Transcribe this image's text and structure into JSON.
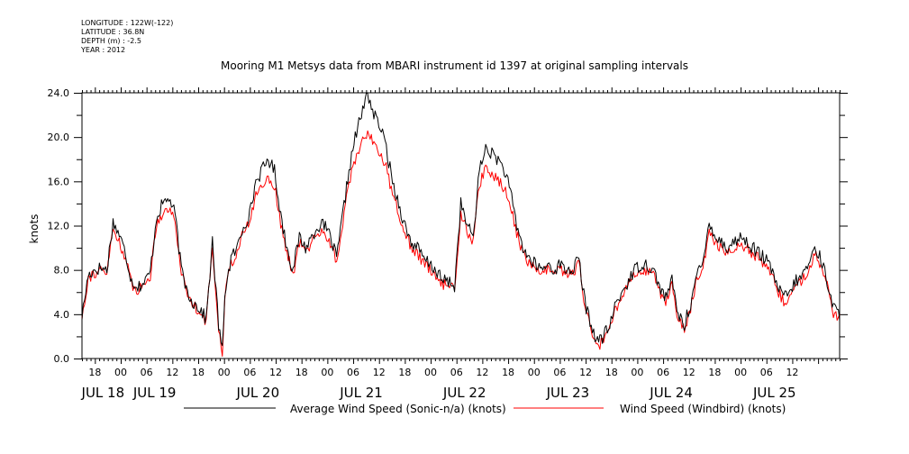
{
  "metadata": {
    "longitude": "LONGITUDE : 122W(-122)",
    "latitude": "LATITUDE : 36.8N",
    "depth": "DEPTH (m) : -2.5",
    "year": "YEAR : 2012"
  },
  "chart_data": {
    "type": "line",
    "title": "Mooring M1 Metsys data from MBARI instrument id 1397 at original sampling intervals",
    "xlabel": "",
    "ylabel": "knots",
    "ylim": [
      0,
      24.0
    ],
    "xlim_hours": [
      -9,
      167
    ],
    "y_ticks": [
      "0.0",
      "4.0",
      "8.0",
      "12.0",
      "16.0",
      "20.0",
      "24.0"
    ],
    "x_hour_ticks": [
      {
        "h": -6,
        "label": "18"
      },
      {
        "h": 0,
        "label": "00"
      },
      {
        "h": 6,
        "label": "06"
      },
      {
        "h": 12,
        "label": "12"
      },
      {
        "h": 18,
        "label": "18"
      },
      {
        "h": 24,
        "label": "00"
      },
      {
        "h": 30,
        "label": "06"
      },
      {
        "h": 36,
        "label": "12"
      },
      {
        "h": 42,
        "label": "18"
      },
      {
        "h": 48,
        "label": "00"
      },
      {
        "h": 54,
        "label": "06"
      },
      {
        "h": 60,
        "label": "12"
      },
      {
        "h": 66,
        "label": "18"
      },
      {
        "h": 72,
        "label": "00"
      },
      {
        "h": 78,
        "label": "06"
      },
      {
        "h": 84,
        "label": "12"
      },
      {
        "h": 90,
        "label": "18"
      },
      {
        "h": 96,
        "label": "00"
      },
      {
        "h": 102,
        "label": "06"
      },
      {
        "h": 108,
        "label": "12"
      },
      {
        "h": 114,
        "label": "18"
      },
      {
        "h": 120,
        "label": "00"
      },
      {
        "h": 126,
        "label": "06"
      },
      {
        "h": 132,
        "label": "12"
      },
      {
        "h": 138,
        "label": "18"
      },
      {
        "h": 144,
        "label": "00"
      },
      {
        "h": 150,
        "label": "06"
      },
      {
        "h": 156,
        "label": "12"
      },
      {
        "h": 162,
        "label": "18"
      },
      {
        "h": 168,
        "label": "00"
      },
      {
        "h": 174,
        "label": "06"
      },
      {
        "h": 180,
        "label": "12"
      },
      {
        "h": 186,
        "label": "18"
      },
      {
        "h": 192,
        "label": "00"
      },
      {
        "h": 198,
        "label": "06"
      },
      {
        "h": 204,
        "label": "12"
      }
    ],
    "x_day_labels": [
      {
        "h": -6,
        "label": "JUL 18"
      },
      {
        "h": 6,
        "label": "JUL 19"
      },
      {
        "h": 30,
        "label": "JUL 20"
      },
      {
        "h": 54,
        "label": "JUL 21"
      },
      {
        "h": 78,
        "label": "JUL 22"
      },
      {
        "h": 102,
        "label": "JUL 23"
      },
      {
        "h": 126,
        "label": "JUL 24"
      },
      {
        "h": 150,
        "label": "JUL 25"
      }
    ],
    "x_hour_ticks_visible_range": [
      -6,
      156
    ],
    "series": [
      {
        "name": "Average Wind Speed (Sonic-n/a) (knots)",
        "color": "#000000",
        "noise": 0.6,
        "points": [
          [
            -9.0,
            3.8
          ],
          [
            -8.0,
            7.5
          ],
          [
            -7.0,
            8.0
          ],
          [
            -6.0,
            8.2
          ],
          [
            -5.0,
            8.0
          ],
          [
            -4.0,
            12.3
          ],
          [
            -3.0,
            11.2
          ],
          [
            -2.0,
            9.5
          ],
          [
            -1.0,
            7.0
          ],
          [
            0.0,
            6.5
          ],
          [
            1.0,
            6.8
          ],
          [
            2.0,
            7.8
          ],
          [
            3.0,
            12.8
          ],
          [
            4.0,
            14.0
          ],
          [
            5.0,
            14.5
          ],
          [
            6.0,
            13.0
          ],
          [
            7.0,
            8.0
          ],
          [
            8.0,
            6.0
          ],
          [
            9.0,
            5.0
          ],
          [
            10.0,
            4.5
          ],
          [
            11.0,
            3.5
          ],
          [
            12.0,
            10.5
          ],
          [
            13.0,
            3.0
          ],
          [
            13.6,
            0.6
          ],
          [
            14.0,
            6.0
          ],
          [
            15.0,
            9.0
          ],
          [
            16.0,
            10.0
          ],
          [
            17.0,
            12.0
          ],
          [
            18.0,
            13.0
          ],
          [
            19.0,
            16.0
          ],
          [
            20.0,
            17.0
          ],
          [
            21.0,
            18.0
          ],
          [
            22.0,
            17.0
          ],
          [
            23.0,
            13.0
          ],
          [
            24.0,
            10.0
          ],
          [
            25.0,
            8.0
          ],
          [
            26.0,
            11.0
          ],
          [
            27.0,
            10.0
          ],
          [
            28.0,
            11.0
          ],
          [
            29.0,
            12.0
          ],
          [
            30.0,
            12.0
          ],
          [
            31.0,
            11.0
          ],
          [
            32.0,
            9.0
          ],
          [
            33.0,
            13.0
          ],
          [
            34.0,
            17.0
          ],
          [
            35.0,
            20.0
          ],
          [
            36.0,
            22.0
          ],
          [
            37.0,
            24.0
          ],
          [
            38.0,
            22.0
          ],
          [
            39.0,
            21.0
          ],
          [
            40.0,
            19.0
          ],
          [
            41.0,
            16.0
          ],
          [
            42.0,
            14.0
          ],
          [
            43.0,
            12.0
          ],
          [
            44.0,
            10.5
          ],
          [
            45.0,
            10.0
          ],
          [
            46.0,
            9.0
          ],
          [
            47.0,
            8.5
          ],
          [
            48.0,
            8.0
          ],
          [
            49.0,
            7.0
          ],
          [
            50.0,
            7.0
          ],
          [
            51.0,
            6.5
          ],
          [
            52.0,
            14.0
          ],
          [
            53.0,
            12.0
          ],
          [
            54.0,
            11.0
          ],
          [
            55.0,
            17.0
          ],
          [
            56.0,
            19.0
          ],
          [
            57.0,
            18.5
          ],
          [
            58.0,
            18.0
          ],
          [
            59.0,
            17.0
          ],
          [
            60.0,
            15.0
          ],
          [
            61.0,
            12.0
          ],
          [
            62.0,
            10.0
          ],
          [
            63.0,
            9.0
          ],
          [
            64.0,
            8.5
          ],
          [
            65.0,
            8.0
          ],
          [
            66.0,
            8.5
          ],
          [
            67.0,
            8.0
          ],
          [
            68.0,
            8.5
          ],
          [
            69.0,
            8.0
          ],
          [
            70.0,
            8.0
          ],
          [
            71.0,
            9.0
          ],
          [
            72.0,
            5.0
          ],
          [
            73.0,
            3.0
          ],
          [
            74.0,
            1.5
          ],
          [
            75.0,
            2.0
          ],
          [
            76.0,
            3.0
          ],
          [
            77.0,
            5.0
          ],
          [
            78.0,
            6.0
          ],
          [
            79.0,
            7.0
          ],
          [
            80.0,
            8.0
          ],
          [
            81.0,
            8.5
          ],
          [
            82.0,
            8.5
          ],
          [
            83.0,
            8.0
          ],
          [
            84.0,
            6.5
          ],
          [
            85.0,
            5.5
          ],
          [
            86.0,
            7.0
          ],
          [
            87.0,
            4.0
          ],
          [
            88.0,
            3.0
          ],
          [
            89.0,
            5.0
          ],
          [
            90.0,
            7.5
          ],
          [
            91.0,
            8.5
          ],
          [
            92.0,
            12.5
          ],
          [
            93.0,
            11.0
          ],
          [
            94.0,
            10.5
          ],
          [
            95.0,
            10.0
          ],
          [
            96.0,
            10.5
          ],
          [
            97.0,
            11.0
          ],
          [
            98.0,
            10.5
          ],
          [
            99.0,
            10.0
          ],
          [
            100.0,
            9.5
          ],
          [
            101.0,
            9.0
          ],
          [
            102.0,
            8.0
          ],
          [
            103.0,
            6.5
          ],
          [
            104.0,
            5.5
          ],
          [
            105.0,
            6.0
          ],
          [
            106.0,
            7.0
          ],
          [
            107.0,
            7.5
          ],
          [
            108.0,
            8.5
          ],
          [
            109.0,
            10.0
          ],
          [
            110.0,
            9.0
          ],
          [
            111.0,
            7.0
          ],
          [
            112.0,
            4.5
          ],
          [
            113.0,
            4.0
          ]
        ]
      },
      {
        "name": "Wind Speed (Windbird) (knots)",
        "color": "#ff0000",
        "noise": 0.5,
        "points": [
          [
            -9.0,
            3.8
          ],
          [
            -8.0,
            7.3
          ],
          [
            -7.0,
            7.7
          ],
          [
            -6.0,
            7.9
          ],
          [
            -5.0,
            7.7
          ],
          [
            -4.0,
            11.7
          ],
          [
            -3.0,
            10.6
          ],
          [
            -2.0,
            9.0
          ],
          [
            -1.0,
            6.7
          ],
          [
            0.0,
            6.2
          ],
          [
            1.0,
            6.6
          ],
          [
            2.0,
            7.5
          ],
          [
            3.0,
            12.2
          ],
          [
            4.0,
            13.2
          ],
          [
            5.0,
            13.6
          ],
          [
            6.0,
            12.4
          ],
          [
            7.0,
            7.8
          ],
          [
            8.0,
            5.8
          ],
          [
            9.0,
            4.8
          ],
          [
            10.0,
            4.3
          ],
          [
            11.0,
            3.3
          ],
          [
            12.0,
            10.0
          ],
          [
            13.0,
            2.8
          ],
          [
            13.6,
            0.4
          ],
          [
            14.0,
            5.8
          ],
          [
            15.0,
            8.6
          ],
          [
            16.0,
            9.6
          ],
          [
            17.0,
            11.4
          ],
          [
            18.0,
            12.3
          ],
          [
            19.0,
            14.8
          ],
          [
            20.0,
            15.6
          ],
          [
            21.0,
            16.4
          ],
          [
            22.0,
            15.6
          ],
          [
            23.0,
            12.2
          ],
          [
            24.0,
            9.5
          ],
          [
            25.0,
            7.6
          ],
          [
            26.0,
            10.5
          ],
          [
            27.0,
            9.6
          ],
          [
            28.0,
            10.5
          ],
          [
            29.0,
            11.4
          ],
          [
            30.0,
            11.4
          ],
          [
            31.0,
            10.5
          ],
          [
            32.0,
            8.6
          ],
          [
            33.0,
            12.4
          ],
          [
            34.0,
            15.8
          ],
          [
            35.0,
            18.0
          ],
          [
            36.0,
            19.5
          ],
          [
            37.0,
            20.5
          ],
          [
            38.0,
            19.5
          ],
          [
            39.0,
            18.6
          ],
          [
            40.0,
            17.2
          ],
          [
            41.0,
            14.8
          ],
          [
            42.0,
            13.2
          ],
          [
            43.0,
            11.4
          ],
          [
            44.0,
            10.0
          ],
          [
            45.0,
            9.5
          ],
          [
            46.0,
            8.6
          ],
          [
            47.0,
            8.1
          ],
          [
            48.0,
            7.6
          ],
          [
            49.0,
            6.7
          ],
          [
            50.0,
            6.7
          ],
          [
            51.0,
            6.2
          ],
          [
            52.0,
            13.2
          ],
          [
            53.0,
            11.4
          ],
          [
            54.0,
            10.5
          ],
          [
            55.0,
            15.8
          ],
          [
            56.0,
            17.0
          ],
          [
            57.0,
            16.6
          ],
          [
            58.0,
            16.2
          ],
          [
            59.0,
            15.4
          ],
          [
            60.0,
            13.8
          ],
          [
            61.0,
            11.4
          ],
          [
            62.0,
            9.5
          ],
          [
            63.0,
            8.6
          ],
          [
            64.0,
            8.1
          ],
          [
            65.0,
            7.6
          ],
          [
            66.0,
            8.1
          ],
          [
            67.0,
            7.6
          ],
          [
            68.0,
            8.1
          ],
          [
            69.0,
            7.6
          ],
          [
            70.0,
            7.6
          ],
          [
            71.0,
            8.6
          ],
          [
            72.0,
            4.6
          ],
          [
            73.0,
            2.6
          ],
          [
            74.0,
            1.0
          ],
          [
            75.0,
            1.6
          ],
          [
            76.0,
            2.6
          ],
          [
            77.0,
            4.6
          ],
          [
            78.0,
            5.6
          ],
          [
            79.0,
            6.6
          ],
          [
            80.0,
            7.6
          ],
          [
            81.0,
            8.0
          ],
          [
            82.0,
            8.0
          ],
          [
            83.0,
            7.6
          ],
          [
            84.0,
            6.1
          ],
          [
            85.0,
            5.1
          ],
          [
            86.0,
            6.6
          ],
          [
            87.0,
            3.6
          ],
          [
            88.0,
            2.6
          ],
          [
            89.0,
            4.6
          ],
          [
            90.0,
            7.0
          ],
          [
            91.0,
            8.0
          ],
          [
            92.0,
            11.8
          ],
          [
            93.0,
            10.4
          ],
          [
            94.0,
            10.0
          ],
          [
            95.0,
            9.5
          ],
          [
            96.0,
            10.0
          ],
          [
            97.0,
            10.4
          ],
          [
            98.0,
            10.0
          ],
          [
            99.0,
            9.5
          ],
          [
            100.0,
            9.0
          ],
          [
            101.0,
            8.5
          ],
          [
            102.0,
            7.6
          ],
          [
            103.0,
            6.1
          ],
          [
            104.0,
            5.1
          ],
          [
            105.0,
            5.6
          ],
          [
            106.0,
            6.6
          ],
          [
            107.0,
            7.1
          ],
          [
            108.0,
            8.0
          ],
          [
            109.0,
            9.5
          ],
          [
            110.0,
            8.5
          ],
          [
            111.0,
            6.6
          ],
          [
            112.0,
            4.0
          ],
          [
            113.0,
            3.6
          ]
        ]
      }
    ]
  }
}
